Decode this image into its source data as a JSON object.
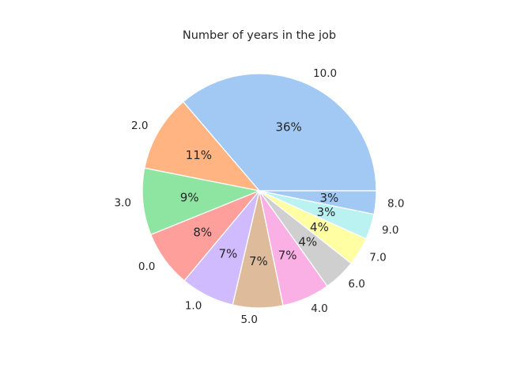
{
  "chart_data": {
    "type": "pie",
    "title": "Number of years in the job",
    "start_angle": 0,
    "direction": "counterclockwise",
    "slices": [
      {
        "label": "10.0",
        "percent_label": "36%",
        "value": 36.2,
        "color": "#a1c9f4"
      },
      {
        "label": "2.0",
        "percent_label": "11%",
        "value": 10.6,
        "color": "#ffb482"
      },
      {
        "label": "3.0",
        "percent_label": "9%",
        "value": 9.2,
        "color": "#8de5a1"
      },
      {
        "label": "0.0",
        "percent_label": "8%",
        "value": 7.8,
        "color": "#ff9f9b"
      },
      {
        "label": "1.0",
        "percent_label": "7%",
        "value": 7.4,
        "color": "#d0bbff"
      },
      {
        "label": "5.0",
        "percent_label": "7%",
        "value": 6.9,
        "color": "#debb9b"
      },
      {
        "label": "4.0",
        "percent_label": "7%",
        "value": 6.6,
        "color": "#fab0e4"
      },
      {
        "label": "6.0",
        "percent_label": "4%",
        "value": 4.5,
        "color": "#cfcfcf"
      },
      {
        "label": "7.0",
        "percent_label": "4%",
        "value": 3.9,
        "color": "#fffea3"
      },
      {
        "label": "9.0",
        "percent_label": "3%",
        "value": 3.5,
        "color": "#b9f2f0"
      },
      {
        "label": "8.0",
        "percent_label": "3%",
        "value": 3.2,
        "color": "#a1c9f4"
      }
    ]
  }
}
